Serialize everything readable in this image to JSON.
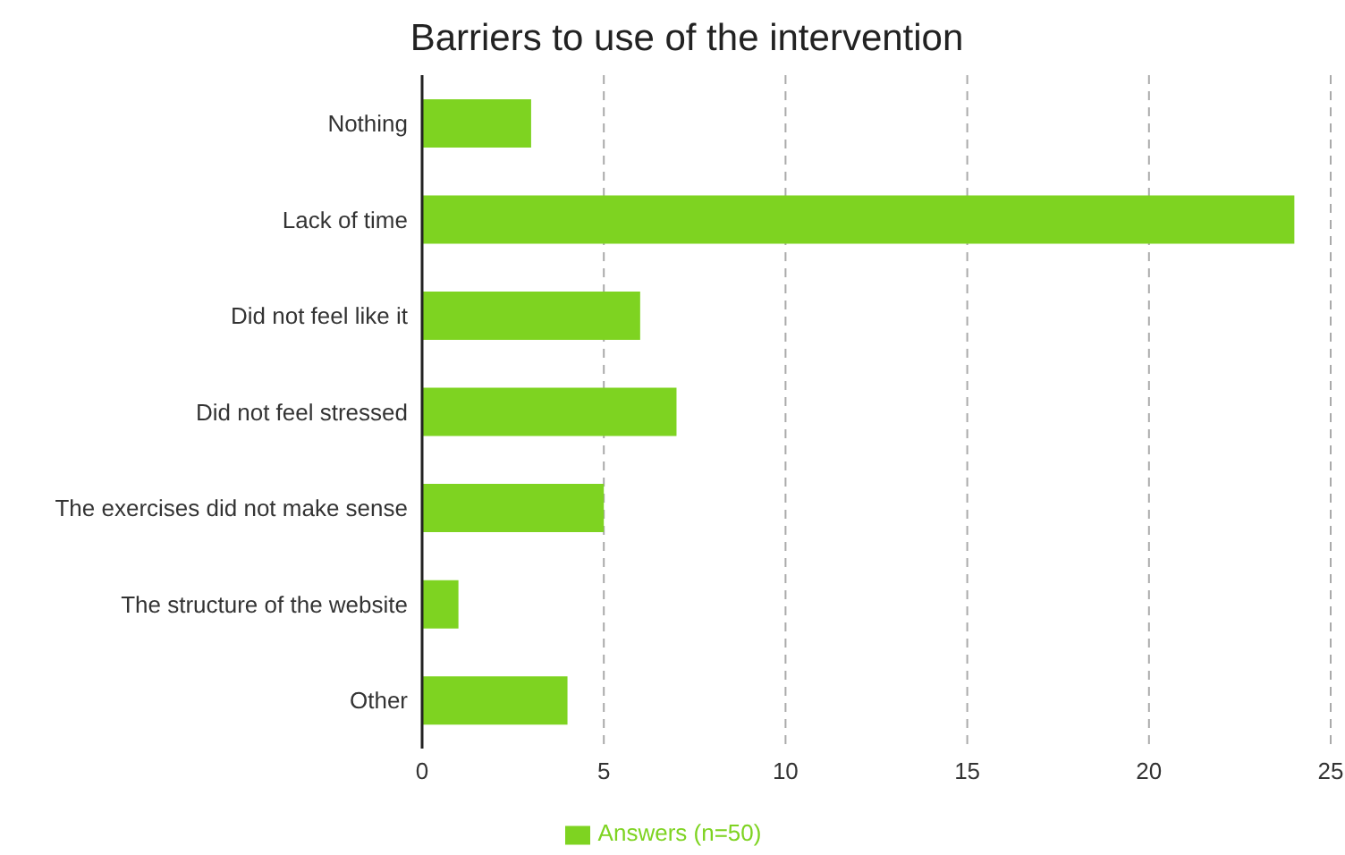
{
  "chart_data": {
    "type": "bar",
    "orientation": "horizontal",
    "title": "Barriers to use of the intervention",
    "categories": [
      "Nothing",
      "Lack of time",
      "Did not feel like it",
      "Did not feel stressed",
      "The exercises did not make sense",
      "The structure of the website",
      "Other"
    ],
    "series": [
      {
        "name": "Answers (n=50)",
        "color": "#7ed321",
        "values": [
          3,
          24,
          6,
          7,
          5,
          1,
          4
        ]
      }
    ],
    "xlim": [
      0,
      25
    ],
    "xticks": [
      0,
      5,
      10,
      15,
      20,
      25
    ],
    "grid": "x",
    "legend": "bottom"
  }
}
